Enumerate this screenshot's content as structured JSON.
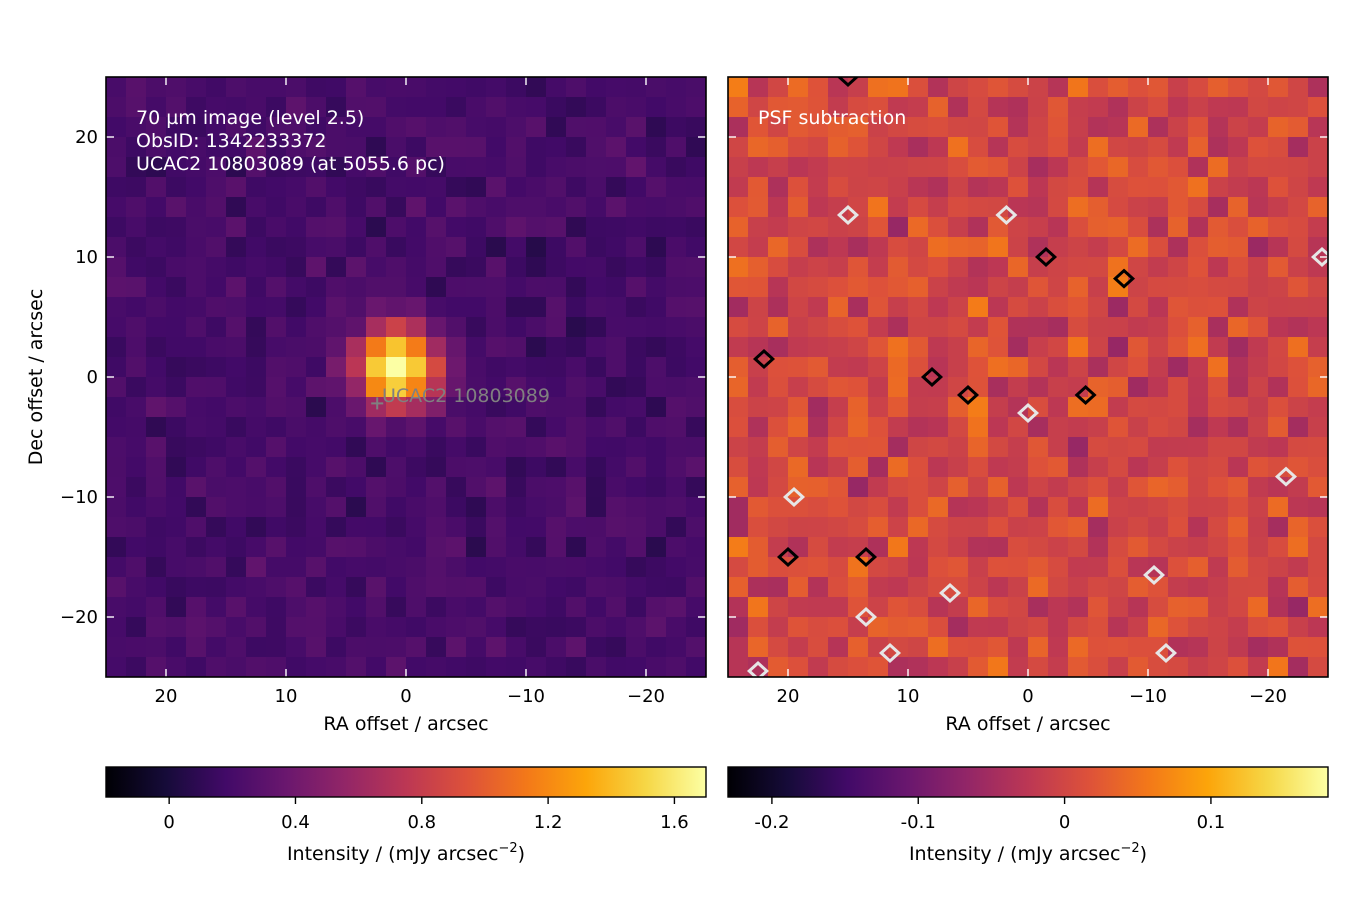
{
  "chart_data": [
    {
      "type": "heatmap",
      "panel": "left",
      "xlabel": "RA offset / arcsec",
      "ylabel": "Dec offset / arcsec",
      "xlim": [
        25,
        -25
      ],
      "ylim": [
        -25,
        25
      ],
      "xticks": [
        20,
        10,
        0,
        -10,
        -20
      ],
      "yticks": [
        20,
        10,
        0,
        -10,
        -20
      ],
      "xtick_labels": [
        "20",
        "10",
        "0",
        "−10",
        "−20"
      ],
      "ytick_labels": [
        "20",
        "10",
        "0",
        "−10",
        "−20"
      ],
      "grid": false,
      "colormap": "inferno",
      "annotation_lines": [
        "70 µm image (level 2.5)",
        "ObsID: 1342233372",
        "UCAC2 10803089 (at 5055.6 pc)"
      ],
      "source": {
        "name": "UCAC2 10803089",
        "marker": "+",
        "ra_offset": 2.4,
        "dec_offset": -2.2,
        "label_color": "#808080"
      },
      "emission_peak": {
        "ra_offset": 0.8,
        "dec_offset": 0.8,
        "peak_value": 1.6
      },
      "background_level": 0.2,
      "colorbar": {
        "label": "Intensity / (mJy arcsec",
        "label_exponent": "−2",
        "label_suffix": ")",
        "range": [
          -0.2,
          1.7
        ],
        "ticks": [
          0,
          0.4,
          0.8,
          1.2,
          1.6
        ],
        "tick_labels": [
          "0",
          "0.4",
          "0.8",
          "1.2",
          "1.6"
        ]
      }
    },
    {
      "type": "heatmap",
      "panel": "right",
      "xlabel": "RA offset / arcsec",
      "ylabel": "",
      "xlim": [
        25,
        -25
      ],
      "ylim": [
        -25,
        25
      ],
      "xticks": [
        20,
        10,
        0,
        -10,
        -20
      ],
      "xtick_labels": [
        "20",
        "10",
        "0",
        "−10",
        "−20"
      ],
      "grid": false,
      "colormap": "inferno",
      "annotation_lines": [
        "PSF subtraction"
      ],
      "contours": {
        "positive_color": "#000000",
        "negative_color": "#e6e6e6",
        "positive": [
          [
            15,
            25
          ],
          [
            -1.5,
            10
          ],
          [
            -8,
            8.2
          ],
          [
            22,
            1.5
          ],
          [
            8,
            0
          ],
          [
            5,
            -1.5
          ],
          [
            -4.8,
            -1.5
          ],
          [
            20,
            -15
          ],
          [
            13.5,
            -15
          ]
        ],
        "negative": [
          [
            15,
            13.5
          ],
          [
            1.8,
            13.5
          ],
          [
            -24.5,
            10
          ],
          [
            0,
            -3
          ],
          [
            -21.5,
            -8.3
          ],
          [
            19.5,
            -10
          ],
          [
            -10.5,
            -16.5
          ],
          [
            6.5,
            -18
          ],
          [
            13.5,
            -20
          ],
          [
            11.5,
            -23
          ],
          [
            -11.5,
            -23
          ],
          [
            22.5,
            -24.5
          ]
        ]
      },
      "colorbar": {
        "label": "Intensity / (mJy arcsec",
        "label_exponent": "−2",
        "label_suffix": ")",
        "range": [
          -0.23,
          0.18
        ],
        "ticks": [
          -0.2,
          -0.1,
          0,
          0.1
        ],
        "tick_labels": [
          "-0.2",
          "-0.1",
          "0",
          "0.1"
        ]
      }
    }
  ]
}
